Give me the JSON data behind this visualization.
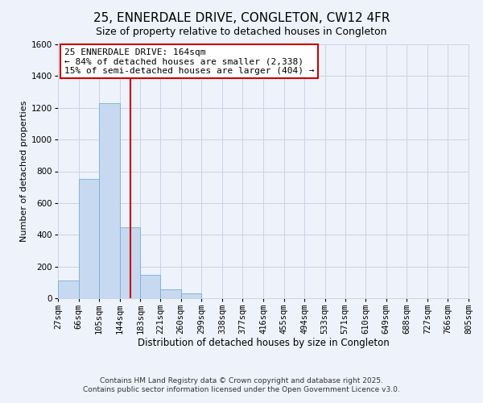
{
  "title": "25, ENNERDALE DRIVE, CONGLETON, CW12 4FR",
  "subtitle": "Size of property relative to detached houses in Congleton",
  "xlabel": "Distribution of detached houses by size in Congleton",
  "ylabel": "Number of detached properties",
  "bin_edges": [
    27,
    66,
    105,
    144,
    183,
    221,
    260,
    299,
    338,
    377,
    416,
    455,
    494,
    533,
    571,
    610,
    649,
    688,
    727,
    766,
    805
  ],
  "bar_heights": [
    113,
    752,
    1228,
    449,
    148,
    57,
    32,
    0,
    0,
    0,
    0,
    0,
    0,
    0,
    0,
    0,
    0,
    0,
    0,
    0
  ],
  "bar_color": "#c6d9f0",
  "bar_edge_color": "#7aadd4",
  "vline_x": 164,
  "vline_color": "#cc0000",
  "ylim": [
    0,
    1600
  ],
  "yticks": [
    0,
    200,
    400,
    600,
    800,
    1000,
    1200,
    1400,
    1600
  ],
  "xtick_labels": [
    "27sqm",
    "66sqm",
    "105sqm",
    "144sqm",
    "183sqm",
    "221sqm",
    "260sqm",
    "299sqm",
    "338sqm",
    "377sqm",
    "416sqm",
    "455sqm",
    "494sqm",
    "533sqm",
    "571sqm",
    "610sqm",
    "649sqm",
    "688sqm",
    "727sqm",
    "766sqm",
    "805sqm"
  ],
  "annotation_title": "25 ENNERDALE DRIVE: 164sqm",
  "annotation_line1": "← 84% of detached houses are smaller (2,338)",
  "annotation_line2": "15% of semi-detached houses are larger (404) →",
  "annotation_box_color": "#ffffff",
  "annotation_box_edge": "#cc0000",
  "grid_color": "#c8d4e8",
  "background_color": "#eef2fa",
  "footer_line1": "Contains HM Land Registry data © Crown copyright and database right 2025.",
  "footer_line2": "Contains public sector information licensed under the Open Government Licence v3.0.",
  "title_fontsize": 11,
  "xlabel_fontsize": 8.5,
  "ylabel_fontsize": 8,
  "tick_fontsize": 7.5,
  "annotation_fontsize": 8,
  "footer_fontsize": 6.5
}
